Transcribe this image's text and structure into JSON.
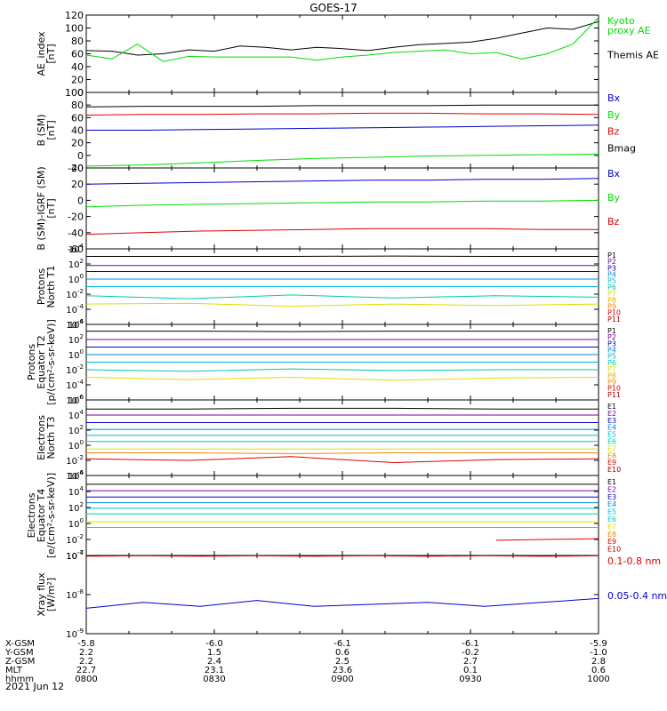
{
  "title": "GOES-17",
  "date_label": "2021 Jun 12",
  "ephemeris": {
    "rows": [
      {
        "label": "X-GSM",
        "values": [
          "-5.8",
          "-6.0",
          "-6.1",
          "-6.1",
          "-5.9"
        ]
      },
      {
        "label": "Y-GSM",
        "values": [
          "2.2",
          "1.5",
          "0.6",
          "-0.2",
          "-1.0"
        ]
      },
      {
        "label": "Z-GSM",
        "values": [
          "2.2",
          "2.4",
          "2.5",
          "2.7",
          "2.8"
        ]
      },
      {
        "label": "MLT",
        "values": [
          "22.7",
          "23.1",
          "23.6",
          "0.1",
          "0.6"
        ]
      },
      {
        "label": "hhmm",
        "values": [
          "0800",
          "0830",
          "0900",
          "0930",
          "1000"
        ]
      }
    ]
  },
  "colors": {
    "black": "#000000",
    "green": "#00dd00",
    "red": "#dd0000",
    "blue": "#0000cc",
    "purple": "#7700aa",
    "cyan": "#00bbdd",
    "teal": "#00ccaa",
    "yellow": "#dddd00",
    "orange": "#ee8800",
    "darkred": "#aa0000"
  },
  "chart_data": [
    {
      "type": "line",
      "ylabel": [
        "AE_index",
        "[nT]"
      ],
      "ylim": [
        0,
        120
      ],
      "yticks": [
        "0",
        "20",
        "40",
        "60",
        "80",
        "100",
        "120"
      ],
      "x_range": [
        "0800",
        "1000"
      ],
      "legend": [
        {
          "name": "Kyoto\nproxy AE",
          "color": "#00dd00"
        },
        {
          "name": "Themis AE",
          "color": "#000000"
        }
      ],
      "series": [
        {
          "name": "Themis AE",
          "color": "#000000",
          "y": [
            65,
            64,
            58,
            60,
            66,
            64,
            72,
            70,
            66,
            70,
            68,
            65,
            70,
            74,
            76,
            78,
            84,
            92,
            100,
            98,
            110
          ]
        },
        {
          "name": "Kyoto proxy AE",
          "color": "#00dd00",
          "y": [
            58,
            52,
            75,
            48,
            56,
            55,
            55,
            55,
            55,
            50,
            55,
            58,
            62,
            64,
            66,
            60,
            62,
            52,
            60,
            75,
            116
          ]
        }
      ]
    },
    {
      "type": "line",
      "ylabel": [
        "B (SM)",
        "[nT]"
      ],
      "ylim": [
        -20,
        100
      ],
      "yticks": [
        "-20",
        "0",
        "20",
        "40",
        "60",
        "80",
        "100"
      ],
      "legend": [
        {
          "name": "Bx",
          "color": "#0000cc"
        },
        {
          "name": "By",
          "color": "#00dd00"
        },
        {
          "name": "Bz",
          "color": "#dd0000"
        },
        {
          "name": "Bmag",
          "color": "#000000"
        }
      ],
      "series": [
        {
          "name": "Bmag",
          "color": "#000000",
          "y": [
            77,
            78,
            78,
            78,
            79,
            79,
            79,
            80,
            80,
            80
          ]
        },
        {
          "name": "Bz",
          "color": "#dd0000",
          "y": [
            64,
            65,
            65,
            66,
            66,
            67,
            67,
            66,
            66,
            65
          ]
        },
        {
          "name": "Bx",
          "color": "#0000cc",
          "y": [
            40,
            40,
            41,
            42,
            43,
            44,
            45,
            46,
            47,
            48
          ]
        },
        {
          "name": "By",
          "color": "#00dd00",
          "y": [
            -17,
            -15,
            -12,
            -8,
            -5,
            -3,
            -1,
            0,
            1,
            2
          ]
        }
      ]
    },
    {
      "type": "line",
      "ylabel": [
        "B (SM)-IGRF (SM)",
        "[nT]"
      ],
      "ylim": [
        -60,
        40
      ],
      "yticks": [
        "-60",
        "-40",
        "-20",
        "0",
        "20",
        "40"
      ],
      "legend": [
        {
          "name": "Bx",
          "color": "#0000cc"
        },
        {
          "name": "By",
          "color": "#00dd00"
        },
        {
          "name": "Bz",
          "color": "#dd0000"
        }
      ],
      "series": [
        {
          "name": "Bx",
          "color": "#0000cc",
          "y": [
            20,
            21,
            22,
            23,
            24,
            25,
            25,
            26,
            26,
            27
          ]
        },
        {
          "name": "By",
          "color": "#00dd00",
          "y": [
            -8,
            -6,
            -5,
            -4,
            -3,
            -2,
            -2,
            -1,
            -1,
            0
          ]
        },
        {
          "name": "Bz",
          "color": "#dd0000",
          "y": [
            -42,
            -40,
            -38,
            -37,
            -36,
            -35,
            -35,
            -35,
            -36,
            -36
          ]
        }
      ]
    },
    {
      "type": "line",
      "log": true,
      "ylabel": [
        "Protons",
        "North T1"
      ],
      "ylim_exp": [
        -6,
        4
      ],
      "yticks_exp": [
        -6,
        -4,
        -2,
        0,
        2,
        4
      ],
      "legend": [
        {
          "name": "P1",
          "color": "#000000"
        },
        {
          "name": "P2",
          "color": "#7700aa"
        },
        {
          "name": "P3",
          "color": "#0000cc"
        },
        {
          "name": "P4",
          "color": "#0088dd"
        },
        {
          "name": "P5",
          "color": "#00bbdd"
        },
        {
          "name": "P6",
          "color": "#00ccaa"
        },
        {
          "name": "P7",
          "color": "#dddd00"
        },
        {
          "name": "P8",
          "color": "#eeaa00"
        },
        {
          "name": "P9",
          "color": "#ee8800"
        },
        {
          "name": "P10",
          "color": "#dd0000"
        },
        {
          "name": "P11",
          "color": "#aa0000"
        }
      ],
      "series": [
        {
          "name": "P1",
          "color": "#000000",
          "y": [
            3.0,
            3.0,
            3.0,
            3.05,
            3.0,
            3.0
          ]
        },
        {
          "name": "P2",
          "color": "#7700aa",
          "y": [
            1.8,
            1.8,
            1.8,
            1.8,
            1.8,
            1.8
          ]
        },
        {
          "name": "P3",
          "color": "#0000cc",
          "y": [
            1.0,
            1.0,
            1.0,
            1.0,
            1.0,
            1.0
          ]
        },
        {
          "name": "P4",
          "color": "#0088dd",
          "y": [
            0.0,
            0.0,
            0.0,
            0.0,
            0.0,
            0.0
          ]
        },
        {
          "name": "P5",
          "color": "#00bbdd",
          "y": [
            -1.0,
            -1.0,
            -1.0,
            -1.0,
            -1.0,
            -1.0
          ]
        },
        {
          "name": "P6",
          "color": "#00ccaa",
          "y": [
            -2.2,
            -2.6,
            -2.1,
            -2.5,
            -2.2,
            -2.4
          ]
        },
        {
          "name": "P7",
          "color": "#dddd00",
          "y": [
            -3.3,
            -3.2,
            -3.6,
            -3.3,
            -3.5,
            -3.3
          ]
        }
      ]
    },
    {
      "type": "line",
      "log": true,
      "ylabel": [
        "Protons",
        "Equator T2",
        "[p/(cm²-s-sr-keV)]"
      ],
      "ylim_exp": [
        -6,
        4
      ],
      "yticks_exp": [
        -6,
        -4,
        -2,
        0,
        2,
        4
      ],
      "legend": [
        {
          "name": "P1",
          "color": "#000000"
        },
        {
          "name": "P2",
          "color": "#7700aa"
        },
        {
          "name": "P3",
          "color": "#0000cc"
        },
        {
          "name": "P4",
          "color": "#0088dd"
        },
        {
          "name": "P5",
          "color": "#00bbdd"
        },
        {
          "name": "P6",
          "color": "#00ccaa"
        },
        {
          "name": "P7",
          "color": "#dddd00"
        },
        {
          "name": "P8",
          "color": "#eeaa00"
        },
        {
          "name": "P9",
          "color": "#ee8800"
        },
        {
          "name": "P10",
          "color": "#dd0000"
        },
        {
          "name": "P11",
          "color": "#aa0000"
        }
      ],
      "series": [
        {
          "name": "P1",
          "color": "#000000",
          "y": [
            3.1,
            3.1,
            3.05,
            3.1,
            3.1,
            3.1
          ]
        },
        {
          "name": "P2",
          "color": "#7700aa",
          "y": [
            2.0,
            2.0,
            2.0,
            2.0,
            2.0,
            2.0
          ]
        },
        {
          "name": "P3",
          "color": "#0000cc",
          "y": [
            1.0,
            1.0,
            1.0,
            1.0,
            1.0,
            1.0
          ]
        },
        {
          "name": "P4",
          "color": "#0088dd",
          "y": [
            0.0,
            0.0,
            0.0,
            0.0,
            0.0,
            0.0
          ]
        },
        {
          "name": "P5",
          "color": "#00bbdd",
          "y": [
            -1.0,
            -1.0,
            -1.0,
            -1.0,
            -1.0,
            -1.0
          ]
        },
        {
          "name": "P6",
          "color": "#00ccaa",
          "y": [
            -2.0,
            -2.2,
            -1.9,
            -2.1,
            -2.0,
            -2.0
          ]
        },
        {
          "name": "P7",
          "color": "#dddd00",
          "y": [
            -3.0,
            -3.3,
            -3.0,
            -3.4,
            -3.1,
            -3.0
          ]
        }
      ]
    },
    {
      "type": "line",
      "log": true,
      "ylabel": [
        "Electrons",
        "North T3"
      ],
      "ylim_exp": [
        -4,
        6
      ],
      "yticks_exp": [
        -4,
        -2,
        0,
        2,
        4,
        6
      ],
      "legend": [
        {
          "name": "E1",
          "color": "#000000"
        },
        {
          "name": "E2",
          "color": "#7700aa"
        },
        {
          "name": "E3",
          "color": "#0000cc"
        },
        {
          "name": "E4",
          "color": "#0088dd"
        },
        {
          "name": "E5",
          "color": "#00bbdd"
        },
        {
          "name": "E6",
          "color": "#00ccaa"
        },
        {
          "name": "E7",
          "color": "#dddd00"
        },
        {
          "name": "E8",
          "color": "#ee8800"
        },
        {
          "name": "E9",
          "color": "#dd0000"
        },
        {
          "name": "E10",
          "color": "#aa0000"
        }
      ],
      "series": [
        {
          "name": "E1",
          "color": "#000000",
          "y": [
            4.8,
            4.8,
            4.9,
            4.9,
            4.8,
            4.8
          ]
        },
        {
          "name": "E2",
          "color": "#7700aa",
          "y": [
            4.0,
            4.0,
            4.0,
            4.0,
            4.0,
            4.0
          ]
        },
        {
          "name": "E3",
          "color": "#0000cc",
          "y": [
            3.0,
            3.0,
            3.0,
            3.0,
            3.0,
            3.0
          ]
        },
        {
          "name": "E4",
          "color": "#0088dd",
          "y": [
            2.1,
            2.1,
            2.1,
            2.1,
            2.1,
            2.1
          ]
        },
        {
          "name": "E5",
          "color": "#00bbdd",
          "y": [
            1.3,
            1.3,
            1.3,
            1.3,
            1.3,
            1.3
          ]
        },
        {
          "name": "E6",
          "color": "#00ccaa",
          "y": [
            0.5,
            0.5,
            0.5,
            0.5,
            0.5,
            0.5
          ]
        },
        {
          "name": "E7",
          "color": "#dddd00",
          "y": [
            -0.5,
            -0.5,
            -0.5,
            -0.5,
            -0.5,
            -0.5
          ]
        },
        {
          "name": "E8",
          "color": "#ee8800",
          "y": [
            -1.0,
            -1.0,
            -1.1,
            -1.0,
            -1.0,
            -1.0
          ]
        },
        {
          "name": "E9",
          "color": "#dd0000",
          "y": [
            -1.8,
            -2.0,
            -1.5,
            -2.3,
            -1.9,
            -1.8
          ]
        }
      ]
    },
    {
      "type": "line",
      "log": true,
      "ylabel": [
        "Electrons",
        "Equator T4",
        "[e/(cm²-s-sr-keV)]"
      ],
      "ylim_exp": [
        -4,
        6
      ],
      "yticks_exp": [
        -4,
        -2,
        0,
        2,
        4,
        6
      ],
      "legend": [
        {
          "name": "E1",
          "color": "#000000"
        },
        {
          "name": "E2",
          "color": "#7700aa"
        },
        {
          "name": "E3",
          "color": "#0000cc"
        },
        {
          "name": "E4",
          "color": "#0088dd"
        },
        {
          "name": "E5",
          "color": "#00bbdd"
        },
        {
          "name": "E6",
          "color": "#00ccaa"
        },
        {
          "name": "E7",
          "color": "#dddd00"
        },
        {
          "name": "E8",
          "color": "#ee8800"
        },
        {
          "name": "E9",
          "color": "#dd0000"
        },
        {
          "name": "E10",
          "color": "#aa0000"
        }
      ],
      "series": [
        {
          "name": "E1",
          "color": "#000000",
          "y": [
            4.9,
            4.9,
            4.9,
            4.9,
            4.9,
            4.9
          ]
        },
        {
          "name": "E2",
          "color": "#7700aa",
          "y": [
            4.1,
            4.1,
            4.1,
            4.1,
            4.1,
            4.1
          ]
        },
        {
          "name": "E3",
          "color": "#0000cc",
          "y": [
            3.3,
            3.3,
            3.3,
            3.3,
            3.3,
            3.3
          ]
        },
        {
          "name": "E4",
          "color": "#0088dd",
          "y": [
            2.6,
            2.6,
            2.6,
            2.6,
            2.6,
            2.6
          ]
        },
        {
          "name": "E5",
          "color": "#00bbdd",
          "y": [
            1.9,
            1.9,
            1.9,
            1.9,
            1.9,
            1.9
          ]
        },
        {
          "name": "E6",
          "color": "#00ccaa",
          "y": [
            1.2,
            1.2,
            1.2,
            1.2,
            1.2,
            1.2
          ]
        },
        {
          "name": "E7",
          "color": "#dddd00",
          "y": [
            0.2,
            0.2,
            0.2,
            0.2,
            0.2,
            0.2
          ]
        },
        {
          "name": "E8",
          "color": "#ee8800",
          "y": [
            -0.5,
            -0.5,
            -0.5,
            -0.5,
            -0.5,
            -0.5
          ]
        },
        {
          "name": "E9",
          "color": "#dd0000",
          "y": [
            null,
            null,
            null,
            null,
            -2.1,
            -1.9
          ]
        }
      ]
    },
    {
      "type": "line",
      "log": true,
      "ylabel": [
        "Xray flux",
        "[W/m²]"
      ],
      "ylim_exp": [
        -9,
        -7
      ],
      "yticks_exp": [
        -9,
        -8,
        -7
      ],
      "legend": [
        {
          "name": "0.1-0.8 nm",
          "color": "#dd0000"
        },
        {
          "name": "0.05-0.4 nm",
          "color": "#0000cc"
        }
      ],
      "series": [
        {
          "name": "0.1-0.8 nm",
          "color": "#dd0000",
          "y": [
            -7.02,
            -7.01,
            -7.02,
            -7.01,
            -7.02,
            -7.01,
            -7.02,
            -7.01,
            -7.02,
            -7.01
          ]
        },
        {
          "name": "0.05-0.4 nm",
          "color": "#0000cc",
          "y": [
            -8.35,
            -8.2,
            -8.3,
            -8.15,
            -8.3,
            -8.25,
            -8.2,
            -8.3,
            -8.2,
            -8.1
          ]
        }
      ]
    }
  ]
}
